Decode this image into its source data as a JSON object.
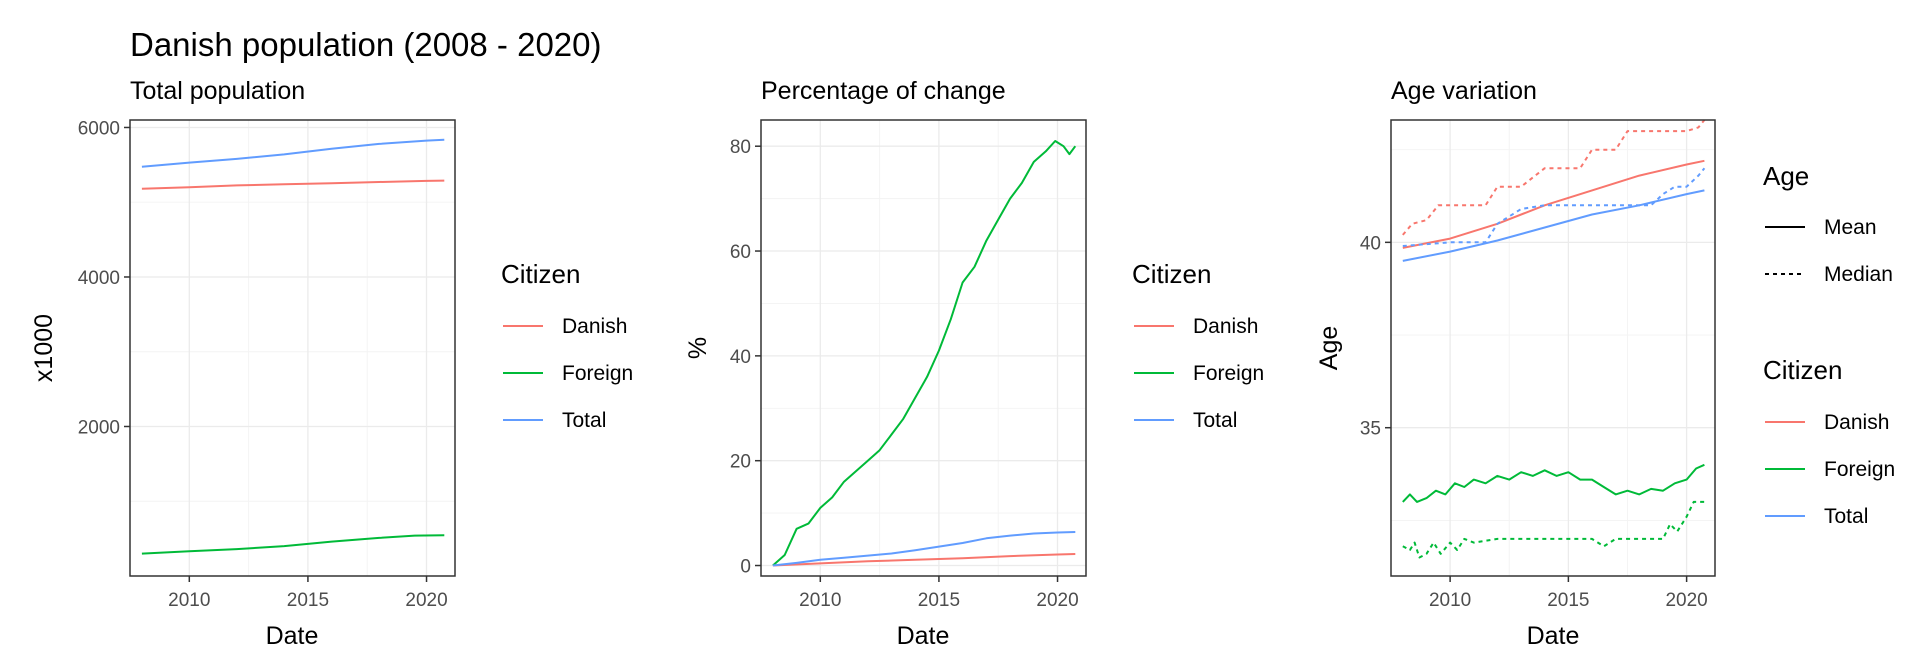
{
  "figure": {
    "title": "Danish population (2008 - 2020)"
  },
  "colors": {
    "danish": "#F8766D",
    "foreign": "#00BA38",
    "total": "#619CFF"
  },
  "chart_data": [
    {
      "id": "total",
      "type": "line",
      "title": "Total population",
      "xlabel": "Date",
      "ylabel": "x1000",
      "xlim": [
        2007.5,
        2021.2
      ],
      "ylim": [
        0,
        6100
      ],
      "xticks": [
        2010,
        2015,
        2020
      ],
      "yticks": [
        2000,
        4000,
        6000
      ],
      "legend": {
        "title": "Citizen",
        "position": "right",
        "items": [
          "Danish",
          "Foreign",
          "Total"
        ]
      },
      "series": [
        {
          "name": "Danish",
          "color": "#F8766D",
          "dash": "solid",
          "x": [
            2008,
            2010,
            2012,
            2014,
            2016,
            2018,
            2020,
            2020.75
          ],
          "y": [
            5180,
            5200,
            5225,
            5240,
            5255,
            5270,
            5285,
            5290
          ]
        },
        {
          "name": "Foreign",
          "color": "#00BA38",
          "dash": "solid",
          "x": [
            2008,
            2010,
            2012,
            2014,
            2016,
            2018,
            2019.5,
            2020.75
          ],
          "y": [
            300,
            330,
            360,
            400,
            460,
            510,
            540,
            545
          ]
        },
        {
          "name": "Total",
          "color": "#619CFF",
          "dash": "solid",
          "x": [
            2008,
            2010,
            2012,
            2014,
            2016,
            2018,
            2020,
            2020.75
          ],
          "y": [
            5475,
            5530,
            5580,
            5640,
            5715,
            5780,
            5825,
            5835
          ]
        }
      ]
    },
    {
      "id": "pct",
      "type": "line",
      "title": "Percentage of change",
      "xlabel": "Date",
      "ylabel": "%",
      "xlim": [
        2007.5,
        2021.2
      ],
      "ylim": [
        -2,
        85
      ],
      "xticks": [
        2010,
        2015,
        2020
      ],
      "yticks": [
        0,
        20,
        40,
        60,
        80
      ],
      "legend": {
        "title": "Citizen",
        "position": "right",
        "items": [
          "Danish",
          "Foreign",
          "Total"
        ]
      },
      "series": [
        {
          "name": "Danish",
          "color": "#F8766D",
          "dash": "solid",
          "x": [
            2008,
            2010,
            2012,
            2014,
            2016,
            2018,
            2020,
            2020.75
          ],
          "y": [
            0,
            0.4,
            0.8,
            1.1,
            1.4,
            1.8,
            2.1,
            2.2
          ]
        },
        {
          "name": "Foreign",
          "color": "#00BA38",
          "dash": "solid",
          "x": [
            2008,
            2008.5,
            2009,
            2009.5,
            2010,
            2010.5,
            2011,
            2011.5,
            2012,
            2012.5,
            2013,
            2013.5,
            2014,
            2014.5,
            2015,
            2015.5,
            2016,
            2016.5,
            2017,
            2017.5,
            2018,
            2018.5,
            2019,
            2019.5,
            2019.9,
            2020.25,
            2020.5,
            2020.75
          ],
          "y": [
            0,
            2,
            7,
            8,
            11,
            13,
            16,
            18,
            20,
            22,
            25,
            28,
            32,
            36,
            41,
            47,
            54,
            57,
            62,
            66,
            70,
            73,
            77,
            79,
            81,
            80,
            78.5,
            80
          ]
        },
        {
          "name": "Total",
          "color": "#619CFF",
          "dash": "solid",
          "x": [
            2008,
            2009,
            2010,
            2011,
            2012,
            2013,
            2014,
            2015,
            2016,
            2017,
            2018,
            2019,
            2020,
            2020.75
          ],
          "y": [
            0,
            0.5,
            1.1,
            1.5,
            1.9,
            2.3,
            2.9,
            3.6,
            4.3,
            5.2,
            5.7,
            6.1,
            6.3,
            6.4
          ]
        }
      ]
    },
    {
      "id": "age",
      "type": "line",
      "title": "Age variation",
      "xlabel": "Date",
      "ylabel": "Age",
      "xlim": [
        2007.5,
        2021.2
      ],
      "ylim": [
        31,
        43.3
      ],
      "xticks": [
        2010,
        2015,
        2020
      ],
      "yticks": [
        35,
        40
      ],
      "legend_linetype": {
        "title": "Age",
        "position": "right",
        "items": [
          "Mean",
          "Median"
        ]
      },
      "legend": {
        "title": "Citizen",
        "position": "right",
        "items": [
          "Danish",
          "Foreign",
          "Total"
        ]
      },
      "series": [
        {
          "name": "Danish",
          "color": "#F8766D",
          "dash": "solid",
          "x": [
            2008,
            2010,
            2012,
            2014,
            2016,
            2018,
            2020,
            2020.75
          ],
          "y": [
            39.85,
            40.1,
            40.5,
            41.0,
            41.4,
            41.8,
            42.1,
            42.2
          ]
        },
        {
          "name": "Danish",
          "color": "#F8766D",
          "dash": "dashed",
          "x": [
            2008,
            2008.4,
            2009,
            2009.5,
            2010,
            2011.5,
            2012,
            2013,
            2014,
            2014.5,
            2015.5,
            2016,
            2017,
            2017.5,
            2018,
            2019.5,
            2020,
            2020.5,
            2020.75
          ],
          "y": [
            40.2,
            40.5,
            40.6,
            41,
            41,
            41,
            41.5,
            41.5,
            42,
            42,
            42,
            42.5,
            42.5,
            43,
            43,
            43,
            43,
            43.1,
            43.3
          ]
        },
        {
          "name": "Total",
          "color": "#619CFF",
          "dash": "solid",
          "x": [
            2008,
            2010,
            2012,
            2014,
            2016,
            2018,
            2020,
            2020.75
          ],
          "y": [
            39.5,
            39.75,
            40.05,
            40.4,
            40.75,
            41.0,
            41.3,
            41.4
          ]
        },
        {
          "name": "Total",
          "color": "#619CFF",
          "dash": "dashed",
          "x": [
            2008,
            2010,
            2011.5,
            2012,
            2013,
            2014,
            2015,
            2016,
            2018.5,
            2019,
            2019.5,
            2020,
            2020.5,
            2020.75
          ],
          "y": [
            39.9,
            40,
            40,
            40.5,
            40.9,
            41,
            41,
            41,
            41,
            41.3,
            41.5,
            41.5,
            41.8,
            42
          ]
        },
        {
          "name": "Foreign",
          "color": "#00BA38",
          "dash": "solid",
          "x": [
            2008,
            2008.3,
            2008.6,
            2009,
            2009.4,
            2009.8,
            2010.2,
            2010.6,
            2011,
            2011.5,
            2012,
            2012.5,
            2013,
            2013.5,
            2014,
            2014.5,
            2015,
            2015.5,
            2016,
            2016.5,
            2017,
            2017.5,
            2018,
            2018.5,
            2019,
            2019.5,
            2020,
            2020.4,
            2020.75
          ],
          "y": [
            33.0,
            33.2,
            33.0,
            33.1,
            33.3,
            33.2,
            33.5,
            33.4,
            33.6,
            33.5,
            33.7,
            33.6,
            33.8,
            33.7,
            33.85,
            33.7,
            33.8,
            33.6,
            33.6,
            33.4,
            33.2,
            33.3,
            33.2,
            33.35,
            33.3,
            33.5,
            33.6,
            33.9,
            34.0
          ]
        },
        {
          "name": "Foreign",
          "color": "#00BA38",
          "dash": "dashed",
          "x": [
            2008,
            2008.3,
            2008.5,
            2008.7,
            2009,
            2009.3,
            2009.6,
            2010,
            2010.3,
            2010.6,
            2011,
            2012,
            2013,
            2014,
            2015,
            2016,
            2016.5,
            2017,
            2018,
            2019,
            2019.3,
            2019.6,
            2020,
            2020.3,
            2020.75
          ],
          "y": [
            31.8,
            31.7,
            31.9,
            31.5,
            31.6,
            31.9,
            31.6,
            31.9,
            31.7,
            32,
            31.9,
            32,
            32,
            32,
            32,
            32,
            31.8,
            32,
            32,
            32,
            32.4,
            32.2,
            32.6,
            33,
            33
          ]
        }
      ]
    }
  ]
}
